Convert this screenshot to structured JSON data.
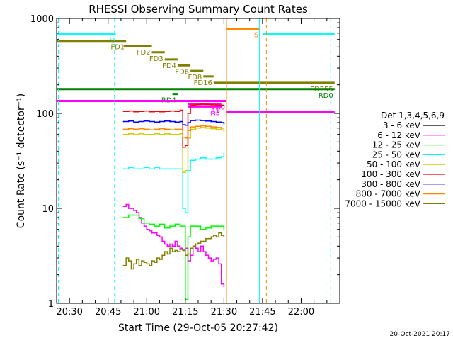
{
  "chart_data": {
    "type": "line",
    "title": "RHESSI Observing Summary Count Rates",
    "xlabel": "Start Time (29-Oct-05 20:27:42)",
    "ylabel": "Count Rate (s⁻¹ detector⁻¹)",
    "yscale": "log",
    "ylim": [
      1,
      1000
    ],
    "xlim_minutes_after_2000": [
      25,
      135
    ],
    "x_ticks": [
      {
        "label": "20:30",
        "t": 30
      },
      {
        "label": "20:45",
        "t": 45
      },
      {
        "label": "21:00",
        "t": 60
      },
      {
        "label": "21:15",
        "t": 75
      },
      {
        "label": "21:30",
        "t": 90
      },
      {
        "label": "21:45",
        "t": 105
      },
      {
        "label": "22:00",
        "t": 120
      }
    ],
    "y_ticks": [
      {
        "label": "1",
        "v": 1
      },
      {
        "label": "10",
        "v": 10
      },
      {
        "label": "100",
        "v": 100
      },
      {
        "label": "1000",
        "v": 1000
      }
    ],
    "legend_title": "Det 1,3,4,5,6,9",
    "legend_position": "right",
    "series": [
      {
        "name": "3 - 6 keV",
        "color": "#000000",
        "x": [],
        "y": []
      },
      {
        "name": "6 - 12 keV",
        "color": "#ff00ff",
        "x": [
          51,
          52,
          53,
          54,
          55,
          56,
          57,
          58,
          59,
          60,
          61,
          62,
          63,
          64,
          65,
          66,
          67,
          68,
          69,
          70,
          71,
          72,
          73,
          74,
          75,
          76,
          77,
          78,
          79,
          80,
          81,
          82,
          83,
          84,
          85,
          86,
          87,
          88,
          89,
          90
        ],
        "y": [
          10.5,
          11,
          10,
          10,
          9.5,
          9,
          8,
          7,
          6.5,
          6,
          5.8,
          5.5,
          5.5,
          5.2,
          5.0,
          4.5,
          4.2,
          4.0,
          4.2,
          4.0,
          4.5,
          4.0,
          3.8,
          3.7,
          3.8,
          2.8,
          3.2,
          4.0,
          3.8,
          3.5,
          4.0,
          3.5,
          3.2,
          3.0,
          2.8,
          2.9,
          3.0,
          2.6,
          1.6,
          1.5
        ]
      },
      {
        "name": "12 - 25 keV",
        "color": "#00ff00",
        "x": [
          51,
          53,
          55,
          57,
          59,
          61,
          63,
          65,
          67,
          69,
          71,
          73,
          75,
          76,
          77,
          79,
          81,
          83,
          85,
          87,
          89,
          90
        ],
        "y": [
          8.0,
          8.5,
          8.5,
          7.8,
          7.0,
          6.8,
          6.5,
          6.8,
          6.2,
          6.5,
          6.8,
          6.5,
          1.1,
          5.0,
          6.5,
          6.5,
          6.0,
          6.2,
          6.5,
          6.5,
          6.5,
          6.0
        ]
      },
      {
        "name": "25 - 50 keV",
        "color": "#00ffff",
        "x": [
          51,
          53,
          55,
          57,
          59,
          61,
          63,
          65,
          67,
          69,
          71,
          73,
          74,
          75,
          76,
          77,
          79,
          81,
          83,
          85,
          87,
          89,
          90
        ],
        "y": [
          26,
          27,
          26,
          26,
          27,
          26,
          27,
          26,
          26,
          26,
          26,
          26,
          10,
          9,
          25,
          32,
          33,
          34,
          33,
          33,
          34,
          35,
          38
        ]
      },
      {
        "name": "50 - 100 keV",
        "color": "#cccc00",
        "x": [
          51,
          53,
          55,
          57,
          59,
          61,
          63,
          65,
          67,
          69,
          71,
          73,
          74,
          75,
          76,
          77,
          79,
          81,
          83,
          85,
          87,
          89,
          90
        ],
        "y": [
          60,
          61,
          60,
          61,
          60,
          60,
          61,
          60,
          61,
          60,
          60,
          61,
          24,
          25,
          55,
          68,
          70,
          71,
          70,
          69,
          68,
          67,
          65
        ]
      },
      {
        "name": "100 - 300 keV",
        "color": "#ff0000",
        "x": [
          51,
          53,
          55,
          57,
          59,
          61,
          63,
          65,
          67,
          69,
          71,
          73,
          74,
          75,
          76,
          77,
          79,
          81,
          83,
          85,
          87,
          89,
          90
        ],
        "y": [
          105,
          106,
          104,
          105,
          106,
          104,
          105,
          104,
          105,
          106,
          105,
          108,
          44,
          46,
          100,
          122,
          124,
          125,
          124,
          123,
          122,
          121,
          120
        ]
      },
      {
        "name": "300 - 800 keV",
        "color": "#0000ff",
        "x": [
          51,
          53,
          55,
          57,
          59,
          61,
          63,
          65,
          67,
          69,
          71,
          73,
          74,
          75,
          76,
          77,
          79,
          81,
          83,
          85,
          87,
          89,
          90
        ],
        "y": [
          82,
          83,
          81,
          82,
          83,
          82,
          81,
          82,
          83,
          82,
          81,
          82,
          76,
          75,
          80,
          84,
          85,
          84,
          83,
          82,
          81,
          80,
          78
        ]
      },
      {
        "name": "800 - 7000 keV",
        "color": "#ff8800",
        "x": [
          51,
          53,
          55,
          57,
          59,
          61,
          63,
          65,
          67,
          69,
          71,
          73,
          74,
          75,
          76,
          77,
          79,
          81,
          83,
          85,
          87,
          89,
          90
        ],
        "y": [
          68,
          69,
          68,
          69,
          68,
          67,
          68,
          69,
          68,
          67,
          68,
          68,
          56,
          55,
          66,
          72,
          73,
          74,
          73,
          72,
          71,
          70,
          70
        ]
      },
      {
        "name": "7000 - 15000 keV",
        "color": "#808000",
        "x": [
          51,
          52,
          53,
          54,
          55,
          56,
          57,
          58,
          59,
          60,
          61,
          62,
          63,
          64,
          65,
          66,
          67,
          68,
          69,
          70,
          71,
          72,
          73,
          74,
          75,
          76,
          77,
          78,
          79,
          80,
          81,
          82,
          83,
          84,
          85,
          86,
          87,
          88,
          89,
          90
        ],
        "y": [
          2.5,
          3.0,
          2.8,
          2.3,
          2.6,
          2.9,
          2.5,
          2.8,
          2.7,
          2.6,
          2.5,
          2.8,
          2.7,
          3.0,
          2.9,
          3.2,
          3.5,
          3.3,
          3.8,
          3.5,
          3.6,
          3.5,
          3.7,
          3.6,
          3.2,
          3.3,
          3.8,
          4.0,
          4.2,
          4.3,
          4.5,
          4.5,
          4.8,
          4.8,
          5.0,
          5.2,
          5.0,
          5.5,
          5.2,
          5.0
        ]
      }
    ],
    "flag_bars": [
      {
        "label": "N",
        "color": "#00ffff",
        "t0": 25,
        "t1": 48,
        "value": 680
      },
      {
        "label": "",
        "color": "#00ffff",
        "t0": 105,
        "t1": 133,
        "value": 680
      },
      {
        "label": "S",
        "color": "#ff8800",
        "t0": 91,
        "t1": 104,
        "value": 780
      },
      {
        "label": "FD1",
        "color": "#808000",
        "t0": 25,
        "t1": 52,
        "value": 580
      },
      {
        "label": "FD2",
        "color": "#808000",
        "t0": 51,
        "t1": 62,
        "value": 510
      },
      {
        "label": "FD3",
        "color": "#808000",
        "t0": 62,
        "t1": 67,
        "value": 440
      },
      {
        "label": "FD4",
        "color": "#808000",
        "t0": 67,
        "t1": 72,
        "value": 370
      },
      {
        "label": "FD6",
        "color": "#808000",
        "t0": 72,
        "t1": 77,
        "value": 320
      },
      {
        "label": "FD8",
        "color": "#808000",
        "t0": 77,
        "t1": 82,
        "value": 280
      },
      {
        "label": "FD16",
        "color": "#808000",
        "t0": 82,
        "t1": 86,
        "value": 245
      },
      {
        "label": "FD255",
        "color": "#808000",
        "t0": 86,
        "t1": 133,
        "value": 210
      },
      {
        "label": "RD0",
        "color": "#008000",
        "t0": 25,
        "t1": 133,
        "value": 180
      },
      {
        "label": "RD4",
        "color": "#008000",
        "t0": 70,
        "t1": 72,
        "value": 160
      },
      {
        "label": "A0",
        "color": "#ff00ff",
        "t0": 25,
        "t1": 91,
        "value": 135
      },
      {
        "label": "",
        "color": "#ff00ff",
        "t0": 91,
        "t1": 133,
        "value": 104
      },
      {
        "label": "A1",
        "color": "#ff00ff",
        "t0": 76,
        "t1": 89,
        "value": 125
      },
      {
        "label": "A3",
        "color": "#ff00ff",
        "t0": 76,
        "t1": 89,
        "value": 118
      }
    ],
    "vertical_markers": [
      {
        "t": 25.7,
        "color": "#00ffff",
        "style": "dashed"
      },
      {
        "t": 47.5,
        "color": "#00ffff",
        "style": "dashed"
      },
      {
        "t": 91.0,
        "color": "#ff8800",
        "style": "solid"
      },
      {
        "t": 103.8,
        "color": "#00ffff",
        "style": "solid"
      },
      {
        "t": 106.5,
        "color": "#ff8800",
        "style": "dashed"
      },
      {
        "t": 131.5,
        "color": "#00ffff",
        "style": "dashed"
      }
    ]
  },
  "footer": {
    "timestamp": "20-Oct-2021 20:17"
  }
}
